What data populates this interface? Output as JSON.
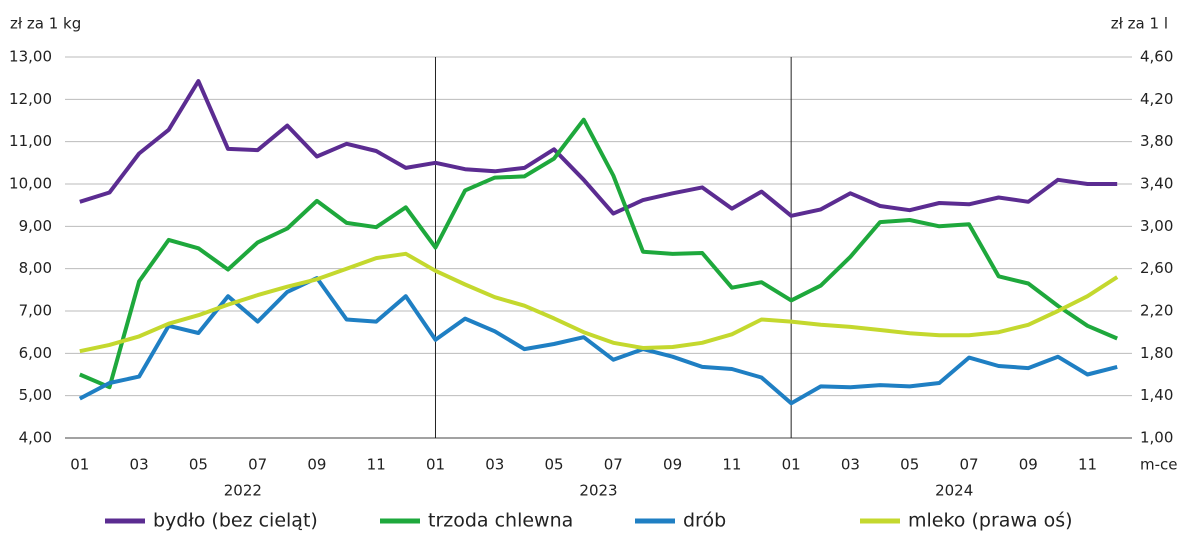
{
  "chart_data": {
    "type": "line",
    "y_label": "zł za 1 kg",
    "y2_label": "zł za 1 l",
    "x_label": "m-ce",
    "categories": [
      "01",
      null,
      "03",
      null,
      "05",
      null,
      "07",
      null,
      "09",
      null,
      "11",
      null,
      "01",
      null,
      "03",
      null,
      "05",
      null,
      "07",
      null,
      "09",
      null,
      "11",
      null,
      "01",
      null,
      "03",
      null,
      "05",
      null,
      "07",
      null,
      "09",
      null,
      "11",
      null
    ],
    "years": [
      "2022",
      "2023",
      "2024"
    ],
    "ylim": [
      4,
      13
    ],
    "yticks": [
      {
        "value": 4,
        "label": "4,00"
      },
      {
        "value": 5,
        "label": "5,00"
      },
      {
        "value": 6,
        "label": "6,00"
      },
      {
        "value": 7,
        "label": "7,00"
      },
      {
        "value": 8,
        "label": "8,00"
      },
      {
        "value": 9,
        "label": "9,00"
      },
      {
        "value": 10,
        "label": "10,00"
      },
      {
        "value": 11,
        "label": "11,00"
      },
      {
        "value": 12,
        "label": "12,00"
      },
      {
        "value": 13,
        "label": "13,00"
      }
    ],
    "y2lim": [
      1,
      4.6
    ],
    "y2ticks": [
      {
        "value": 1,
        "label": "1,00"
      },
      {
        "value": 1.4,
        "label": "1,40"
      },
      {
        "value": 1.8,
        "label": "1,80"
      },
      {
        "value": 2.2,
        "label": "2,20"
      },
      {
        "value": 2.6,
        "label": "2,60"
      },
      {
        "value": 3,
        "label": "3,00"
      },
      {
        "value": 3.4,
        "label": "3,40"
      },
      {
        "value": 3.8,
        "label": "3,80"
      },
      {
        "value": 4.2,
        "label": "4,20"
      },
      {
        "value": 4.6,
        "label": "4,60"
      }
    ],
    "grid": true,
    "legend": "bottom",
    "series": [
      {
        "name": "bydło (bez cieląt)",
        "color": "#5b2c91",
        "values": [
          9.58,
          9.8,
          10.72,
          11.28,
          12.43,
          10.83,
          10.8,
          11.38,
          10.65,
          10.95,
          10.78,
          10.38,
          10.5,
          10.35,
          10.3,
          10.38,
          10.82,
          10.1,
          9.3,
          9.62,
          9.78,
          9.92,
          9.42,
          9.82,
          9.25,
          9.4,
          9.78,
          9.48,
          9.38,
          9.55,
          9.52,
          9.68,
          9.58,
          10.1,
          10.0,
          10.0
        ]
      },
      {
        "name": "trzoda chlewna",
        "color": "#1ea83c",
        "values": [
          5.5,
          5.2,
          7.7,
          8.68,
          8.48,
          7.98,
          8.62,
          8.95,
          9.6,
          9.08,
          8.98,
          9.45,
          8.5,
          9.85,
          10.15,
          10.18,
          10.6,
          11.52,
          10.2,
          8.4,
          8.35,
          8.37,
          7.55,
          7.68,
          7.25,
          7.6,
          8.28,
          9.1,
          9.15,
          9.0,
          9.05,
          7.82,
          7.65,
          7.12,
          6.65,
          6.35
        ]
      },
      {
        "name": "drób",
        "color": "#1f7fc3",
        "values": [
          4.93,
          5.3,
          5.45,
          6.65,
          6.48,
          7.35,
          6.75,
          7.45,
          7.78,
          6.8,
          6.75,
          7.35,
          6.32,
          6.82,
          6.52,
          6.1,
          6.22,
          6.38,
          5.85,
          6.1,
          5.92,
          5.68,
          5.63,
          5.43,
          4.82,
          5.22,
          5.2,
          5.25,
          5.22,
          5.3,
          5.9,
          5.7,
          5.65,
          5.92,
          5.5,
          5.68
        ]
      },
      {
        "name": "mleko (prawa oś)",
        "color": "#c4d82e",
        "axis": "y2",
        "values": [
          1.82,
          1.88,
          1.96,
          2.08,
          2.16,
          2.26,
          2.35,
          2.43,
          2.5,
          2.6,
          2.7,
          2.74,
          2.58,
          2.45,
          2.33,
          2.25,
          2.13,
          2.0,
          1.9,
          1.85,
          1.86,
          1.9,
          1.98,
          2.12,
          2.1,
          2.07,
          2.05,
          2.02,
          1.99,
          1.97,
          1.97,
          2.0,
          2.07,
          2.2,
          2.34,
          2.52
        ]
      }
    ]
  }
}
